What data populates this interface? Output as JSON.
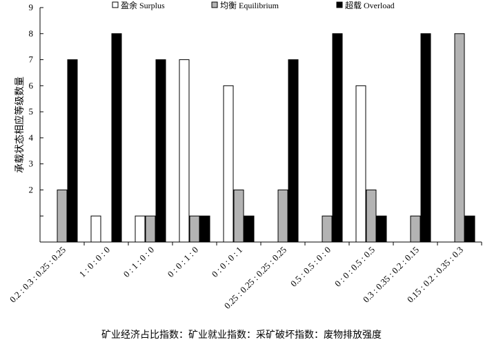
{
  "chart_data": {
    "type": "bar",
    "xlabel": "矿业经济占比指数：矿业就业指数：采矿破坏指数：废物排放强度",
    "ylabel": "承载状态相应等级数量",
    "ylim": [
      0,
      9
    ],
    "yticks": [
      "",
      "",
      "2",
      "3",
      "4",
      "5",
      "6",
      "7",
      "8",
      "9"
    ],
    "grid": false,
    "legend_position": "top",
    "categories": [
      "0.2 : 0.3 : 0.25 : 0.25",
      "1 : 0 : 0 : 0",
      "0 : 1 : 0 : 0",
      "0 : 0 : 1 : 0",
      "0 : 0 : 0 : 1",
      "0.25 : 0.25 : 0.25 : 0.25",
      "0.5 : 0.5 : 0 : 0",
      "0 : 0 : 0.5 : 0.5",
      "0.3 : 0.35 : 0.2 : 0.15",
      "0.15 : 0.2 : 0.35 : 0.3"
    ],
    "series": [
      {
        "name": "盈余 Surplus",
        "color": "#ffffff",
        "values": [
          0,
          1,
          1,
          7,
          6,
          0,
          0,
          6,
          0,
          0
        ]
      },
      {
        "name": "均衡 Equilibrium",
        "color": "#b3b3b3",
        "values": [
          2,
          0,
          1,
          1,
          2,
          2,
          1,
          2,
          1,
          8
        ]
      },
      {
        "name": "超载 Overload",
        "color": "#000000",
        "values": [
          7,
          8,
          7,
          1,
          1,
          7,
          8,
          1,
          8,
          1
        ]
      }
    ]
  }
}
